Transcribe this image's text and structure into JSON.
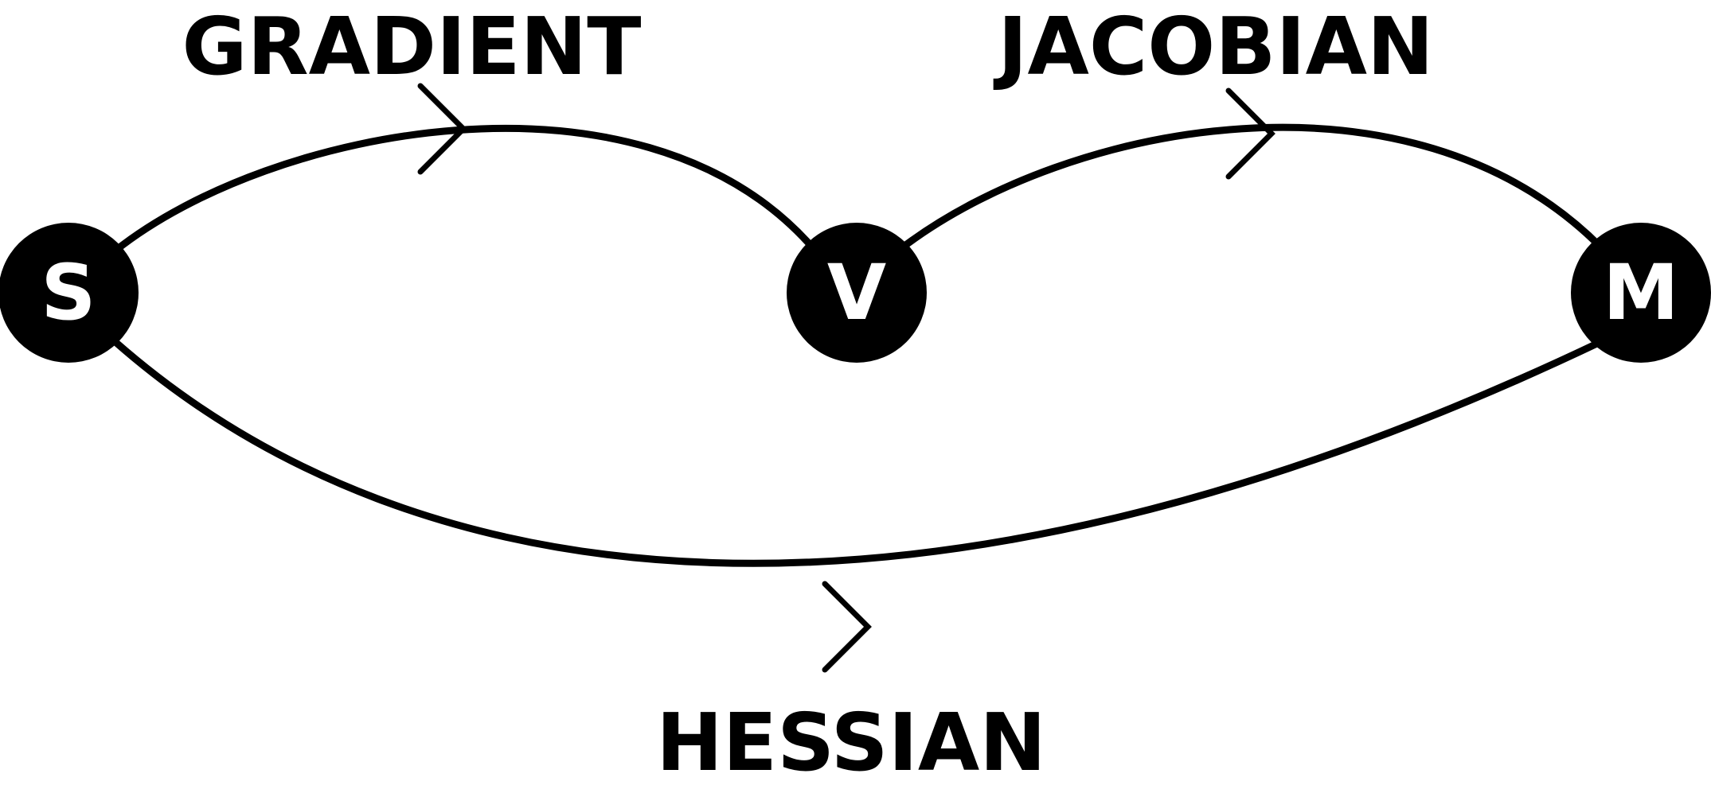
{
  "diagram": {
    "nodes": {
      "s": {
        "label": "S"
      },
      "v": {
        "label": "V"
      },
      "m": {
        "label": "M"
      }
    },
    "edges": {
      "s_to_v": {
        "label": "GRADIENT",
        "from": "S",
        "to": "V"
      },
      "v_to_m": {
        "label": "JACOBIAN",
        "from": "V",
        "to": "M"
      },
      "s_to_m": {
        "label": "HESSIAN",
        "from": "S",
        "to": "M"
      }
    },
    "colors": {
      "stroke": "#000000",
      "node_fill": "#000000",
      "node_text": "#ffffff",
      "background": "#ffffff"
    }
  }
}
